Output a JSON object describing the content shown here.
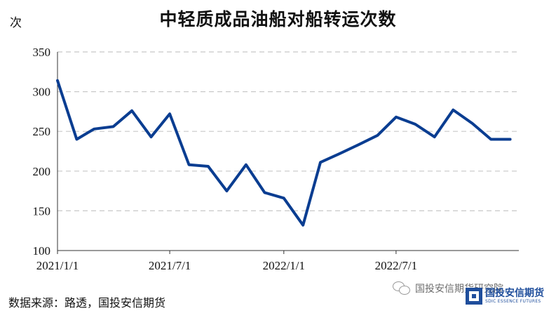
{
  "chart_data": {
    "type": "line",
    "title": "中轻质成品油船对船转运次数",
    "ylabel": "次",
    "xlabel": "",
    "ylim": [
      100,
      350
    ],
    "yticks": [
      100,
      150,
      200,
      250,
      300,
      350
    ],
    "xlim": [
      "2021-01-01",
      "2023-01-15"
    ],
    "xticks": [
      {
        "date": "2021-01-01",
        "label": "2021/1/1"
      },
      {
        "date": "2021-07-01",
        "label": "2021/7/1"
      },
      {
        "date": "2022-01-01",
        "label": "2022/1/1"
      },
      {
        "date": "2022-07-01",
        "label": "2022/7/1"
      }
    ],
    "grid": "horizontal-dashed",
    "line_color": "#0a3d91",
    "series": [
      {
        "x": [
          "2021-01-01",
          "2021-02-01",
          "2021-03-01",
          "2021-04-01",
          "2021-05-01",
          "2021-06-01",
          "2021-07-01",
          "2021-08-01",
          "2021-09-01",
          "2021-10-01",
          "2021-11-01",
          "2021-12-01",
          "2022-01-01",
          "2022-02-01",
          "2022-03-01",
          "2022-04-01",
          "2022-05-01",
          "2022-06-01",
          "2022-07-01",
          "2022-08-01",
          "2022-09-01",
          "2022-10-01",
          "2022-11-01",
          "2022-12-01",
          "2023-01-01"
        ],
        "values": [
          314,
          240,
          253,
          256,
          276,
          243,
          272,
          208,
          206,
          175,
          208,
          173,
          166,
          132,
          211,
          222,
          233,
          245,
          268,
          259,
          243,
          277,
          260,
          240,
          240
        ]
      }
    ]
  },
  "source": "数据来源：路透，国投安信期货",
  "watermark": {
    "wechat_text": "国投安信期货研究院",
    "logo_cn": "国投安信期货",
    "logo_en": "SDIC ESSENCE FUTURES",
    "brand_color": "#1f4e9c"
  }
}
